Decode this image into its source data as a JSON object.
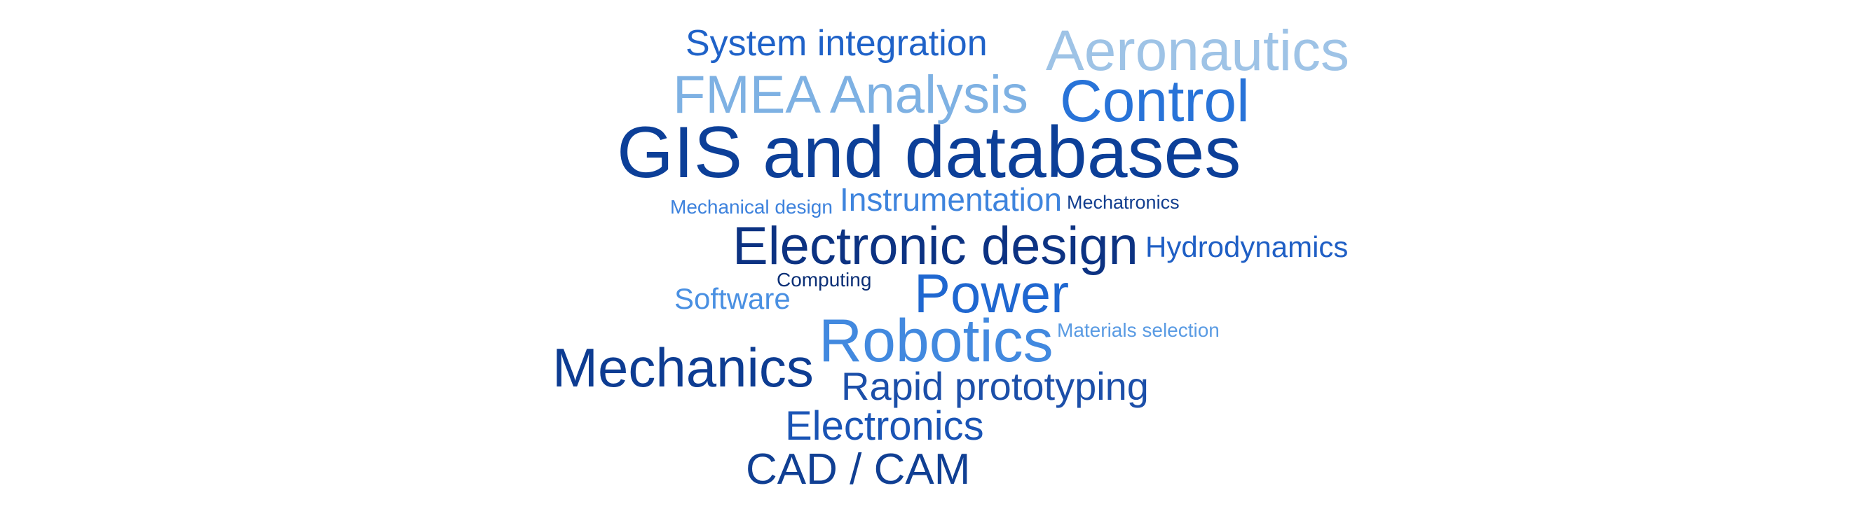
{
  "cloud": {
    "words": [
      {
        "text": "System integration",
        "color": "#1f62c8"
      },
      {
        "text": "Aeronautics",
        "color": "#9ec3e6"
      },
      {
        "text": "FMEA Analysis",
        "color": "#7eb1e3"
      },
      {
        "text": "Control",
        "color": "#2873d8"
      },
      {
        "text": "GIS and databases",
        "color": "#0c3f98"
      },
      {
        "text": "Mechanical design",
        "color": "#3d82dd"
      },
      {
        "text": "Instrumentation",
        "color": "#3e84dd"
      },
      {
        "text": "Mechatronics",
        "color": "#123e8f"
      },
      {
        "text": "Electronic design",
        "color": "#0c3282"
      },
      {
        "text": "Hydrodynamics",
        "color": "#1f5fc5"
      },
      {
        "text": "Computing",
        "color": "#0b2f76"
      },
      {
        "text": "Software",
        "color": "#4a90e2"
      },
      {
        "text": "Power",
        "color": "#1f67d0"
      },
      {
        "text": "Robotics",
        "color": "#4289df"
      },
      {
        "text": "Materials selection",
        "color": "#5a9be3"
      },
      {
        "text": "Mechanics",
        "color": "#0d3c92"
      },
      {
        "text": "Rapid prototyping",
        "color": "#1c4fa9"
      },
      {
        "text": "Electronics",
        "color": "#1a54b5"
      },
      {
        "text": "CAD / CAM",
        "color": "#103f93"
      }
    ]
  }
}
